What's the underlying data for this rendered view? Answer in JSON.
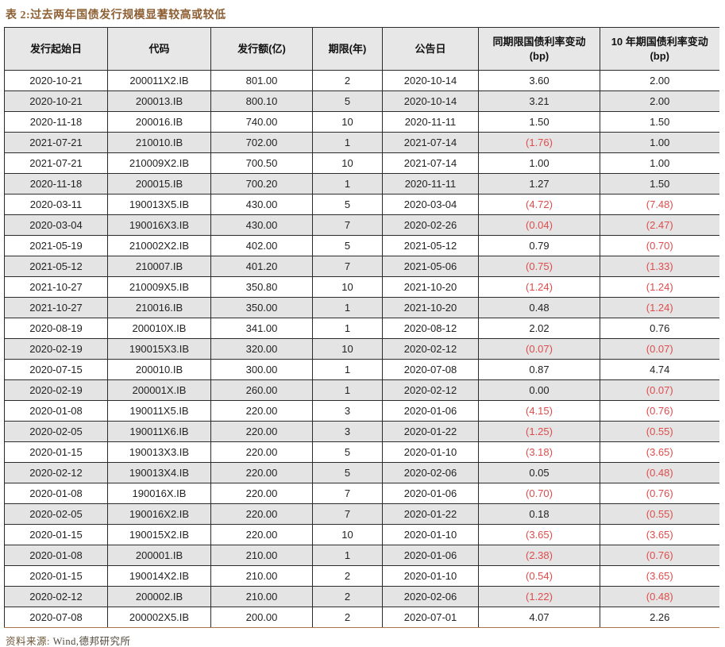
{
  "title": "表 2:过去两年国债发行规模显著较高或较低",
  "table": {
    "columns": [
      {
        "label": "发行起始日",
        "sub": ""
      },
      {
        "label": "代码",
        "sub": ""
      },
      {
        "label": "发行额(亿)",
        "sub": ""
      },
      {
        "label": "期限(年)",
        "sub": ""
      },
      {
        "label": "公告日",
        "sub": ""
      },
      {
        "label": "同期限国债利率变动",
        "sub": "(bp)"
      },
      {
        "label": "10 年期国债利率变动",
        "sub": "(bp)"
      }
    ],
    "rows": [
      [
        "2020-10-21",
        "200011X2.IB",
        "801.00",
        "2",
        "2020-10-14",
        "3.60",
        "2.00"
      ],
      [
        "2020-10-21",
        "200013.IB",
        "800.10",
        "5",
        "2020-10-14",
        "3.21",
        "2.00"
      ],
      [
        "2020-11-18",
        "200016.IB",
        "740.00",
        "10",
        "2020-11-11",
        "1.50",
        "1.50"
      ],
      [
        "2021-07-21",
        "210010.IB",
        "702.00",
        "1",
        "2021-07-14",
        "(1.76)",
        "1.00"
      ],
      [
        "2021-07-21",
        "210009X2.IB",
        "700.50",
        "10",
        "2021-07-14",
        "1.00",
        "1.00"
      ],
      [
        "2020-11-18",
        "200015.IB",
        "700.20",
        "1",
        "2020-11-11",
        "1.27",
        "1.50"
      ],
      [
        "2020-03-11",
        "190013X5.IB",
        "430.00",
        "5",
        "2020-03-04",
        "(4.72)",
        "(7.48)"
      ],
      [
        "2020-03-04",
        "190016X3.IB",
        "430.00",
        "7",
        "2020-02-26",
        "(0.04)",
        "(2.47)"
      ],
      [
        "2021-05-19",
        "210002X2.IB",
        "402.00",
        "5",
        "2021-05-12",
        "0.79",
        "(0.70)"
      ],
      [
        "2021-05-12",
        "210007.IB",
        "401.20",
        "7",
        "2021-05-06",
        "(0.75)",
        "(1.33)"
      ],
      [
        "2021-10-27",
        "210009X5.IB",
        "350.80",
        "10",
        "2021-10-20",
        "(1.24)",
        "(1.24)"
      ],
      [
        "2021-10-27",
        "210016.IB",
        "350.00",
        "1",
        "2021-10-20",
        "0.48",
        "(1.24)"
      ],
      [
        "2020-08-19",
        "200010X.IB",
        "341.00",
        "1",
        "2020-08-12",
        "2.02",
        "0.76"
      ],
      [
        "2020-02-19",
        "190015X3.IB",
        "320.00",
        "10",
        "2020-02-12",
        "(0.07)",
        "(0.07)"
      ],
      [
        "2020-07-15",
        "200010.IB",
        "300.00",
        "1",
        "2020-07-08",
        "0.87",
        "4.74"
      ],
      [
        "2020-02-19",
        "200001X.IB",
        "260.00",
        "1",
        "2020-02-12",
        "0.00",
        "(0.07)"
      ],
      [
        "2020-01-08",
        "190011X5.IB",
        "220.00",
        "3",
        "2020-01-06",
        "(4.15)",
        "(0.76)"
      ],
      [
        "2020-02-05",
        "190011X6.IB",
        "220.00",
        "3",
        "2020-01-22",
        "(1.25)",
        "(0.55)"
      ],
      [
        "2020-01-15",
        "190013X3.IB",
        "220.00",
        "5",
        "2020-01-10",
        "(3.18)",
        "(3.65)"
      ],
      [
        "2020-02-12",
        "190013X4.IB",
        "220.00",
        "5",
        "2020-02-06",
        "0.05",
        "(0.48)"
      ],
      [
        "2020-01-08",
        "190016X.IB",
        "220.00",
        "7",
        "2020-01-06",
        "(0.70)",
        "(0.76)"
      ],
      [
        "2020-02-05",
        "190016X2.IB",
        "220.00",
        "7",
        "2020-01-22",
        "0.18",
        "(0.55)"
      ],
      [
        "2020-01-15",
        "190015X2.IB",
        "220.00",
        "10",
        "2020-01-10",
        "(3.65)",
        "(3.65)"
      ],
      [
        "2020-01-08",
        "200001.IB",
        "210.00",
        "1",
        "2020-01-06",
        "(2.38)",
        "(0.76)"
      ],
      [
        "2020-01-15",
        "190014X2.IB",
        "210.00",
        "2",
        "2020-01-10",
        "(0.54)",
        "(3.65)"
      ],
      [
        "2020-02-12",
        "200002.IB",
        "210.00",
        "2",
        "2020-02-06",
        "(1.22)",
        "(0.48)"
      ],
      [
        "2020-07-08",
        "200002X5.IB",
        "200.00",
        "2",
        "2020-07-01",
        "4.07",
        "2.26"
      ]
    ]
  },
  "footer": {
    "source_label": "资料来源:",
    "source_text": "Wind,德邦研究所"
  },
  "colors": {
    "accent_brown": "#8d5f33",
    "negative_red": "#e04c4c",
    "row_shade": "#e4e4e4",
    "header_shade": "#e7e7e7",
    "border_dark": "#2b2b2b",
    "table_bottom_line": "#a9744a"
  }
}
